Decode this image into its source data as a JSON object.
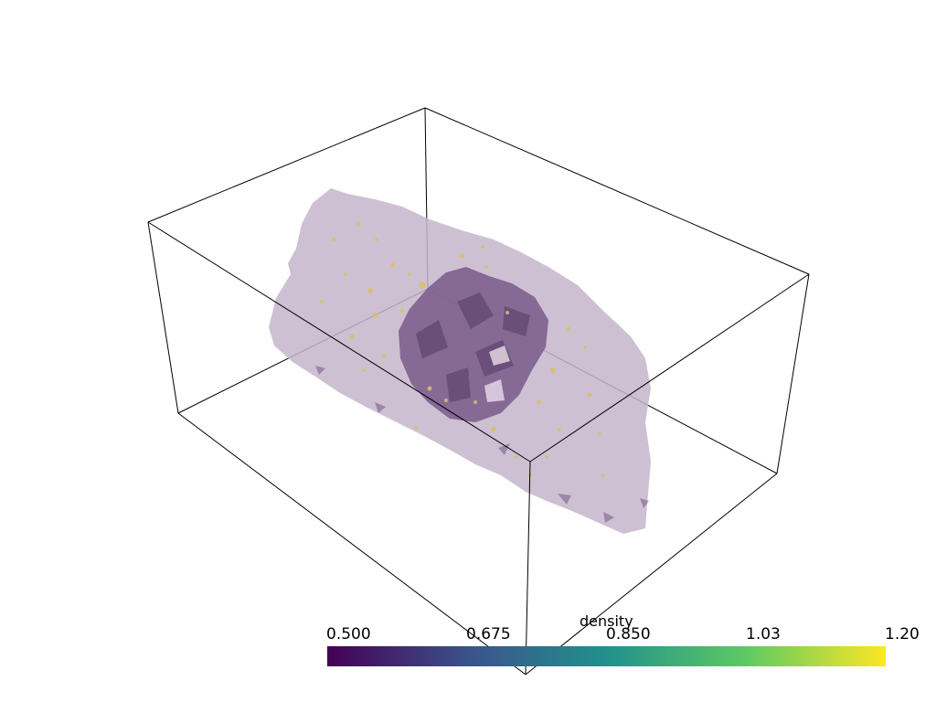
{
  "colorbar": {
    "title": "density",
    "ticks": [
      "0.500",
      "0.675",
      "0.850",
      "1.03",
      "1.20"
    ],
    "colormap": "viridis",
    "stops": [
      "#440154",
      "#3b528b",
      "#21918c",
      "#5ec962",
      "#fde725"
    ],
    "range": [
      0.5,
      1.2
    ]
  },
  "surface_colors": {
    "outer_isosurface": "#c6b5cb",
    "inner_isosurface": "#7e5f8e",
    "speckles": "#d7bf6e"
  },
  "outline_color": "#000000"
}
